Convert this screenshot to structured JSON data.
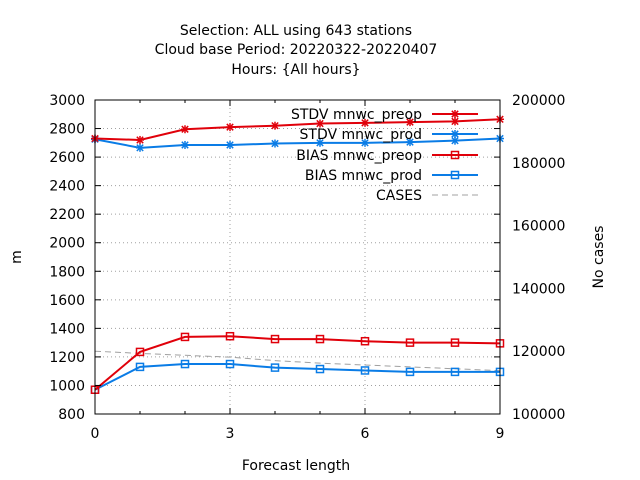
{
  "chart_data": {
    "type": "line",
    "title": [
      "Selection: ALL using   643 stations",
      "Cloud base   Period: 20220322-20220407",
      "Hours: {All hours}"
    ],
    "xlabel": "Forecast length",
    "ylabel": "m",
    "y2label": "No cases",
    "xlim": [
      0,
      9
    ],
    "xticks": [
      0,
      3,
      6,
      9
    ],
    "ylim": [
      800,
      3000
    ],
    "yticks": [
      800,
      1000,
      1200,
      1400,
      1600,
      1800,
      2000,
      2200,
      2400,
      2600,
      2800,
      3000
    ],
    "y2lim": [
      100000,
      200000
    ],
    "y2ticks": [
      100000,
      120000,
      140000,
      160000,
      180000,
      200000
    ],
    "grid": true,
    "legend_position": "top-right",
    "x": [
      0,
      1,
      2,
      3,
      4,
      5,
      6,
      7,
      8,
      9
    ],
    "series": [
      {
        "name": "STDV mnwc_preop",
        "color": "#e0000a",
        "marker": "star",
        "axis": "y",
        "values": [
          2730,
          2720,
          2795,
          2810,
          2820,
          2835,
          2840,
          2845,
          2850,
          2865
        ]
      },
      {
        "name": "STDV mnwc_prod",
        "color": "#0a7ce6",
        "marker": "star",
        "axis": "y",
        "values": [
          2725,
          2665,
          2685,
          2685,
          2695,
          2700,
          2700,
          2705,
          2715,
          2730
        ]
      },
      {
        "name": "BIAS mnwc_preop",
        "color": "#e0000a",
        "marker": "square",
        "axis": "y",
        "values": [
          970,
          1235,
          1340,
          1345,
          1325,
          1325,
          1310,
          1300,
          1300,
          1295
        ]
      },
      {
        "name": "BIAS mnwc_prod",
        "color": "#0a7ce6",
        "marker": "square",
        "axis": "y",
        "values": [
          970,
          1130,
          1150,
          1150,
          1125,
          1115,
          1105,
          1095,
          1095,
          1095
        ]
      },
      {
        "name": "CASES",
        "color": "#a0a0a0",
        "marker": "none",
        "dashed": true,
        "axis": "y2",
        "values": [
          120000,
          119300,
          118700,
          118100,
          117000,
          116200,
          115600,
          115000,
          114400,
          113800
        ]
      }
    ]
  }
}
